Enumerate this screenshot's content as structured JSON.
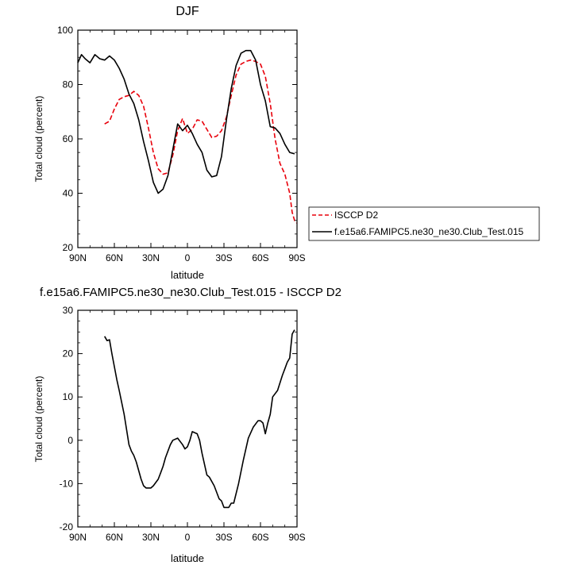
{
  "chart_data": [
    {
      "type": "line",
      "title": "DJF",
      "xlabel": "latitude",
      "ylabel": "Total cloud (percent)",
      "x_ticks": [
        90,
        60,
        30,
        0,
        -30,
        -60,
        -90
      ],
      "x_tick_labels": [
        "90N",
        "60N",
        "30N",
        "0",
        "30S",
        "60S",
        "90S"
      ],
      "xlim": [
        90,
        -90
      ],
      "ylim": [
        20,
        100
      ],
      "y_ticks": [
        20,
        40,
        60,
        80,
        100
      ],
      "y_tick_labels": [
        "20",
        "40",
        "60",
        "80",
        "100"
      ],
      "grid": false,
      "legend_position": "right",
      "series": [
        {
          "name": "ISCCP D2",
          "color": "#e8000b",
          "style": "dashed",
          "x": [
            68,
            64,
            60,
            56,
            52,
            48,
            44,
            40,
            36,
            32,
            28,
            24,
            20,
            16,
            12,
            8,
            4,
            0,
            -4,
            -8,
            -12,
            -16,
            -20,
            -24,
            -28,
            -32,
            -36,
            -40,
            -44,
            -48,
            -52,
            -56,
            -60,
            -64,
            -68,
            -72,
            -76,
            -80,
            -84,
            -86,
            -88,
            -90
          ],
          "y": [
            65.5,
            66.5,
            71,
            74.5,
            75.5,
            76,
            77.5,
            76,
            72,
            64,
            55,
            49,
            47,
            47.5,
            54,
            63,
            67.5,
            62,
            63.5,
            67,
            66.5,
            63.5,
            60.5,
            61,
            63,
            68,
            76,
            83.5,
            87.5,
            88.5,
            89,
            88.5,
            87.5,
            83,
            73,
            60,
            51,
            47,
            40,
            33,
            30,
            29
          ]
        },
        {
          "name": "f.e15a6.FAMIPC5.ne30_ne30.Club_Test.015",
          "color": "#000000",
          "style": "solid",
          "x": [
            90,
            87,
            84,
            80,
            76,
            72,
            68,
            64,
            60,
            56,
            52,
            48,
            44,
            40,
            36,
            32,
            28,
            24,
            20,
            16,
            12,
            8,
            4,
            0,
            -4,
            -8,
            -12,
            -16,
            -20,
            -24,
            -28,
            -32,
            -36,
            -40,
            -44,
            -48,
            -52,
            -56,
            -60,
            -64,
            -68,
            -72,
            -76,
            -80,
            -84,
            -88
          ],
          "y": [
            88,
            91,
            89.5,
            88,
            91,
            89.5,
            89,
            90.5,
            89,
            86,
            82,
            76.5,
            73,
            67,
            59,
            52,
            44,
            40,
            41.5,
            46.5,
            56,
            65.5,
            63,
            65,
            62,
            58,
            55,
            48.5,
            46,
            46.5,
            53.5,
            67,
            78.5,
            87,
            91.5,
            92.5,
            92.5,
            89,
            80,
            74,
            64.5,
            64,
            62,
            58,
            55,
            54.5
          ]
        }
      ]
    },
    {
      "type": "line",
      "title": "f.e15a6.FAMIPC5.ne30_ne30.Club_Test.015 - ISCCP D2",
      "xlabel": "latitude",
      "ylabel": "Total cloud (percent)",
      "x_ticks": [
        90,
        60,
        30,
        0,
        -30,
        -60,
        -90
      ],
      "x_tick_labels": [
        "90N",
        "60N",
        "30N",
        "0",
        "30S",
        "60S",
        "90S"
      ],
      "xlim": [
        90,
        -90
      ],
      "ylim": [
        -20,
        30
      ],
      "y_ticks": [
        -20,
        -10,
        0,
        10,
        20,
        30
      ],
      "y_tick_labels": [
        "-20",
        "-10",
        "0",
        "10",
        "20",
        "30"
      ],
      "grid": false,
      "series": [
        {
          "color": "#000000",
          "style": "solid",
          "x": [
            68,
            66,
            64,
            62,
            58,
            56,
            52,
            48,
            46,
            44,
            42,
            38,
            36,
            34,
            30,
            28,
            24,
            22,
            20,
            18,
            14,
            12,
            8,
            4,
            2,
            0,
            -2,
            -4,
            -8,
            -10,
            -12,
            -16,
            -18,
            -22,
            -26,
            -28,
            -30,
            -34,
            -36,
            -38,
            -42,
            -46,
            -50,
            -54,
            -58,
            -60,
            -62,
            -64,
            -66,
            -68,
            -70,
            -74,
            -78,
            -80,
            -82,
            -84,
            -86,
            -88
          ],
          "y": [
            24,
            23,
            23.2,
            20,
            14,
            11.5,
            6,
            -1,
            -2.5,
            -3.5,
            -5,
            -9,
            -10.5,
            -11,
            -11,
            -10.5,
            -9,
            -7.5,
            -6,
            -4,
            -1,
            0,
            0.5,
            -1,
            -2,
            -1.5,
            0,
            2,
            1.5,
            0,
            -3,
            -8,
            -8.5,
            -10.5,
            -13.5,
            -14,
            -15.5,
            -15.5,
            -14.5,
            -14.5,
            -10,
            -4.5,
            0.5,
            3,
            4.5,
            4.5,
            4,
            1.5,
            4,
            6,
            10,
            11.5,
            15,
            16.5,
            18,
            19,
            24.5,
            25.5
          ]
        }
      ]
    }
  ]
}
